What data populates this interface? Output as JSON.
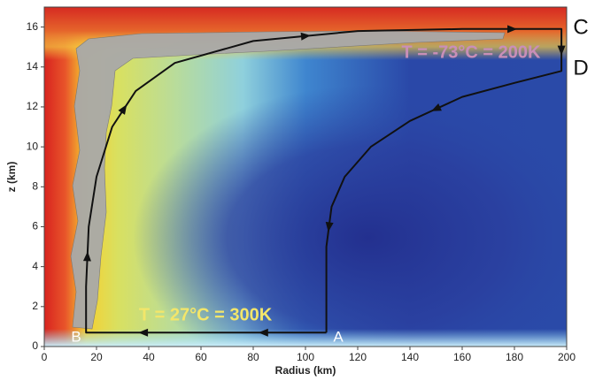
{
  "chart_data": {
    "type": "line",
    "x_label": "Radius (km)",
    "y_label": "z (km)",
    "x": [
      108,
      60,
      16,
      16,
      17,
      20,
      26,
      35,
      50,
      80,
      120,
      160,
      198,
      198,
      180,
      160,
      140,
      125,
      115,
      110,
      108,
      108,
      108
    ],
    "series": [
      {
        "color": "#111111",
        "values": [
          0.7,
          0.7,
          0.7,
          3,
          6,
          8.5,
          11,
          12.8,
          14.2,
          15.3,
          15.8,
          15.9,
          15.9,
          13.8,
          13.2,
          12.5,
          11.3,
          10,
          8.5,
          7,
          5,
          3,
          0.7
        ]
      }
    ],
    "xlim": [
      0,
      200
    ],
    "xticks": [
      0,
      20,
      40,
      60,
      80,
      100,
      120,
      140,
      160,
      180,
      200
    ],
    "ylim": [
      0,
      17
    ],
    "yticks": [
      0,
      2,
      4,
      6,
      8,
      10,
      12,
      14,
      16
    ],
    "point_labels": [
      {
        "text": "A",
        "color": "#ffffff"
      },
      {
        "text": "B",
        "color": "#ffffff"
      },
      {
        "text": "C",
        "color": "#111111"
      },
      {
        "text": "D",
        "color": "#111111"
      }
    ],
    "annotations": [
      {
        "text": "T = -73°C = 200K",
        "color": "#c98fb8"
      },
      {
        "text": "T = 27°C = 300K",
        "color": "#f3e66a"
      }
    ]
  }
}
